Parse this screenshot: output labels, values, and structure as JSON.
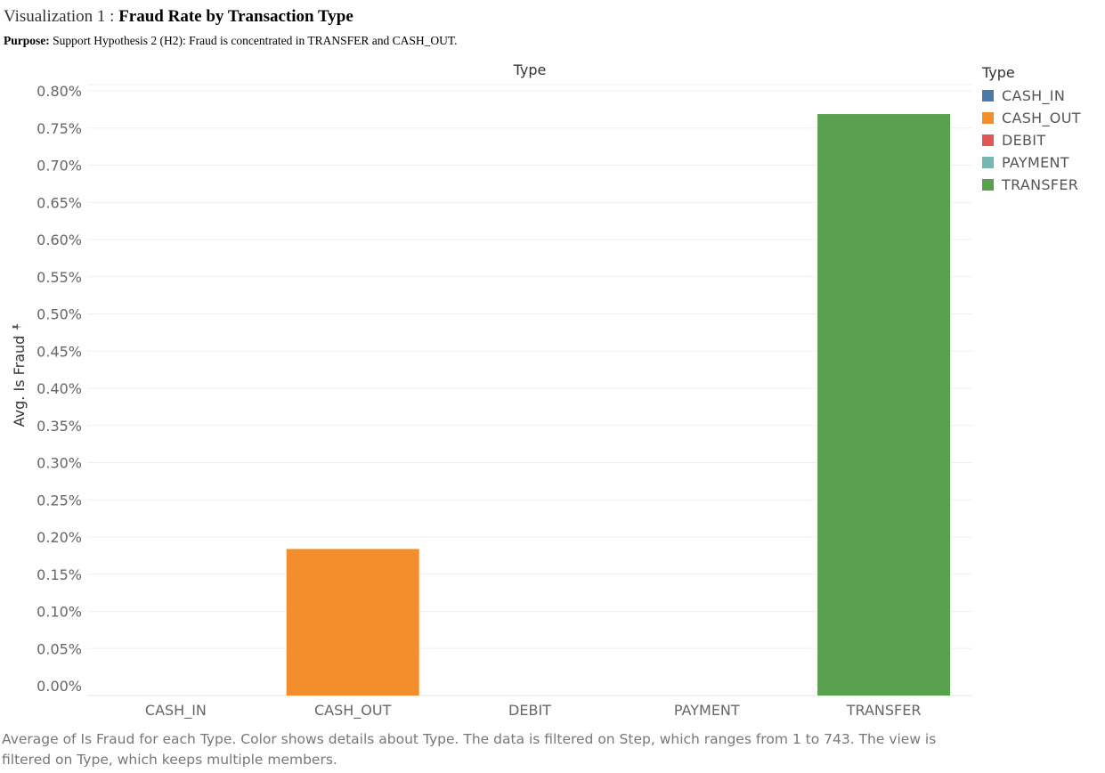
{
  "title": {
    "prefix": "Visualization 1 : ",
    "main": "Fraud Rate by Transaction Type"
  },
  "purpose": {
    "label": "Purpose:",
    "text": " Support Hypothesis 2 (H2): Fraud is concentrated in TRANSFER and CASH_OUT."
  },
  "chart_data": {
    "type": "bar",
    "column_header": "Type",
    "ylabel": "Avg. Is Fraud",
    "categories": [
      "CASH_IN",
      "CASH_OUT",
      "DEBIT",
      "PAYMENT",
      "TRANSFER"
    ],
    "values": [
      0.0,
      0.1839,
      0.0,
      0.0,
      0.7688
    ],
    "value_unit": "%",
    "ylim": [
      0,
      0.8
    ],
    "yticks": [
      "0.00%",
      "0.05%",
      "0.10%",
      "0.15%",
      "0.20%",
      "0.25%",
      "0.30%",
      "0.35%",
      "0.40%",
      "0.45%",
      "0.50%",
      "0.55%",
      "0.60%",
      "0.65%",
      "0.70%",
      "0.75%",
      "0.80%"
    ],
    "colors": {
      "CASH_IN": "#4e79a7",
      "CASH_OUT": "#f28e2b",
      "DEBIT": "#e15759",
      "PAYMENT": "#76b7b2",
      "TRANSFER": "#59a14f"
    },
    "grid": true,
    "legend_placement": "right"
  },
  "legend": {
    "title": "Type",
    "items": [
      {
        "label": "CASH_IN",
        "color": "#4e79a7"
      },
      {
        "label": "CASH_OUT",
        "color": "#f28e2b"
      },
      {
        "label": "DEBIT",
        "color": "#e15759"
      },
      {
        "label": "PAYMENT",
        "color": "#76b7b2"
      },
      {
        "label": "TRANSFER",
        "color": "#59a14f"
      }
    ]
  },
  "footnote": "Average of Is Fraud for each Type.  Color shows details about Type. The data is filtered on Step, which ranges from 1 to 743. The view is filtered on Type, which keeps multiple members."
}
